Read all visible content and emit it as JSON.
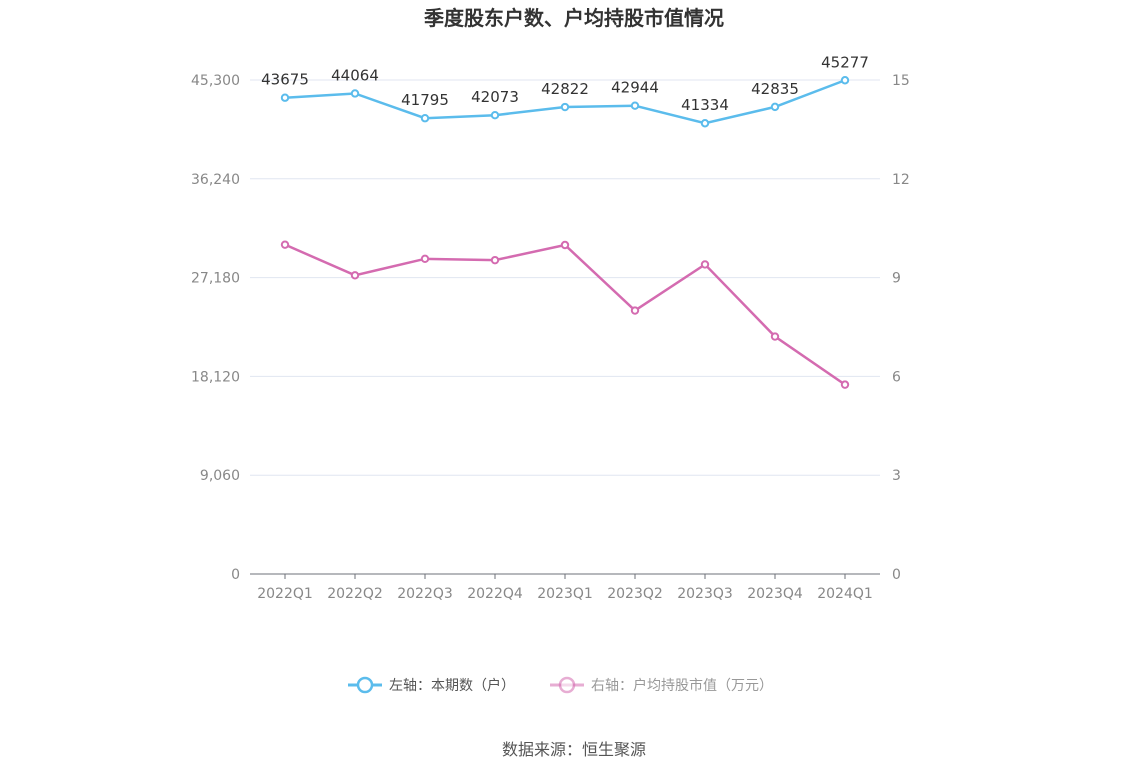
{
  "chart_data": {
    "type": "line",
    "title": "季度股东户数、户均持股市值情况",
    "categories": [
      "2022Q1",
      "2022Q2",
      "2022Q3",
      "2022Q4",
      "2023Q1",
      "2023Q2",
      "2023Q3",
      "2023Q4",
      "2024Q1"
    ],
    "left_axis": {
      "ylim": [
        0,
        45300
      ],
      "ticks": [
        0,
        9060,
        18120,
        27180,
        36240,
        45300
      ],
      "tick_labels": [
        "0",
        "9,060",
        "18,120",
        "27,180",
        "36,240",
        "45,300"
      ]
    },
    "right_axis": {
      "ylim": [
        0,
        15
      ],
      "ticks": [
        0,
        3,
        6,
        9,
        12,
        15
      ],
      "tick_labels": [
        "0",
        "3",
        "6",
        "9",
        "12",
        "15"
      ]
    },
    "series": [
      {
        "name": "左轴：本期数（户）",
        "axis": "left",
        "color": "#5bbcec",
        "values": [
          43675,
          44064,
          41795,
          42073,
          42822,
          42944,
          41334,
          42835,
          45277
        ],
        "labels": [
          "43675",
          "44064",
          "41795",
          "42073",
          "42822",
          "42944",
          "41334",
          "42835",
          "45277"
        ]
      },
      {
        "name": "右轴：户均持股市值（万元）",
        "axis": "right",
        "color": "#d46bb0",
        "values": [
          10.0,
          9.07,
          9.57,
          9.53,
          9.99,
          8.0,
          9.4,
          7.21,
          5.75
        ]
      }
    ],
    "grid": true,
    "legend_position": "bottom-center"
  },
  "source": "数据来源：恒生聚源"
}
